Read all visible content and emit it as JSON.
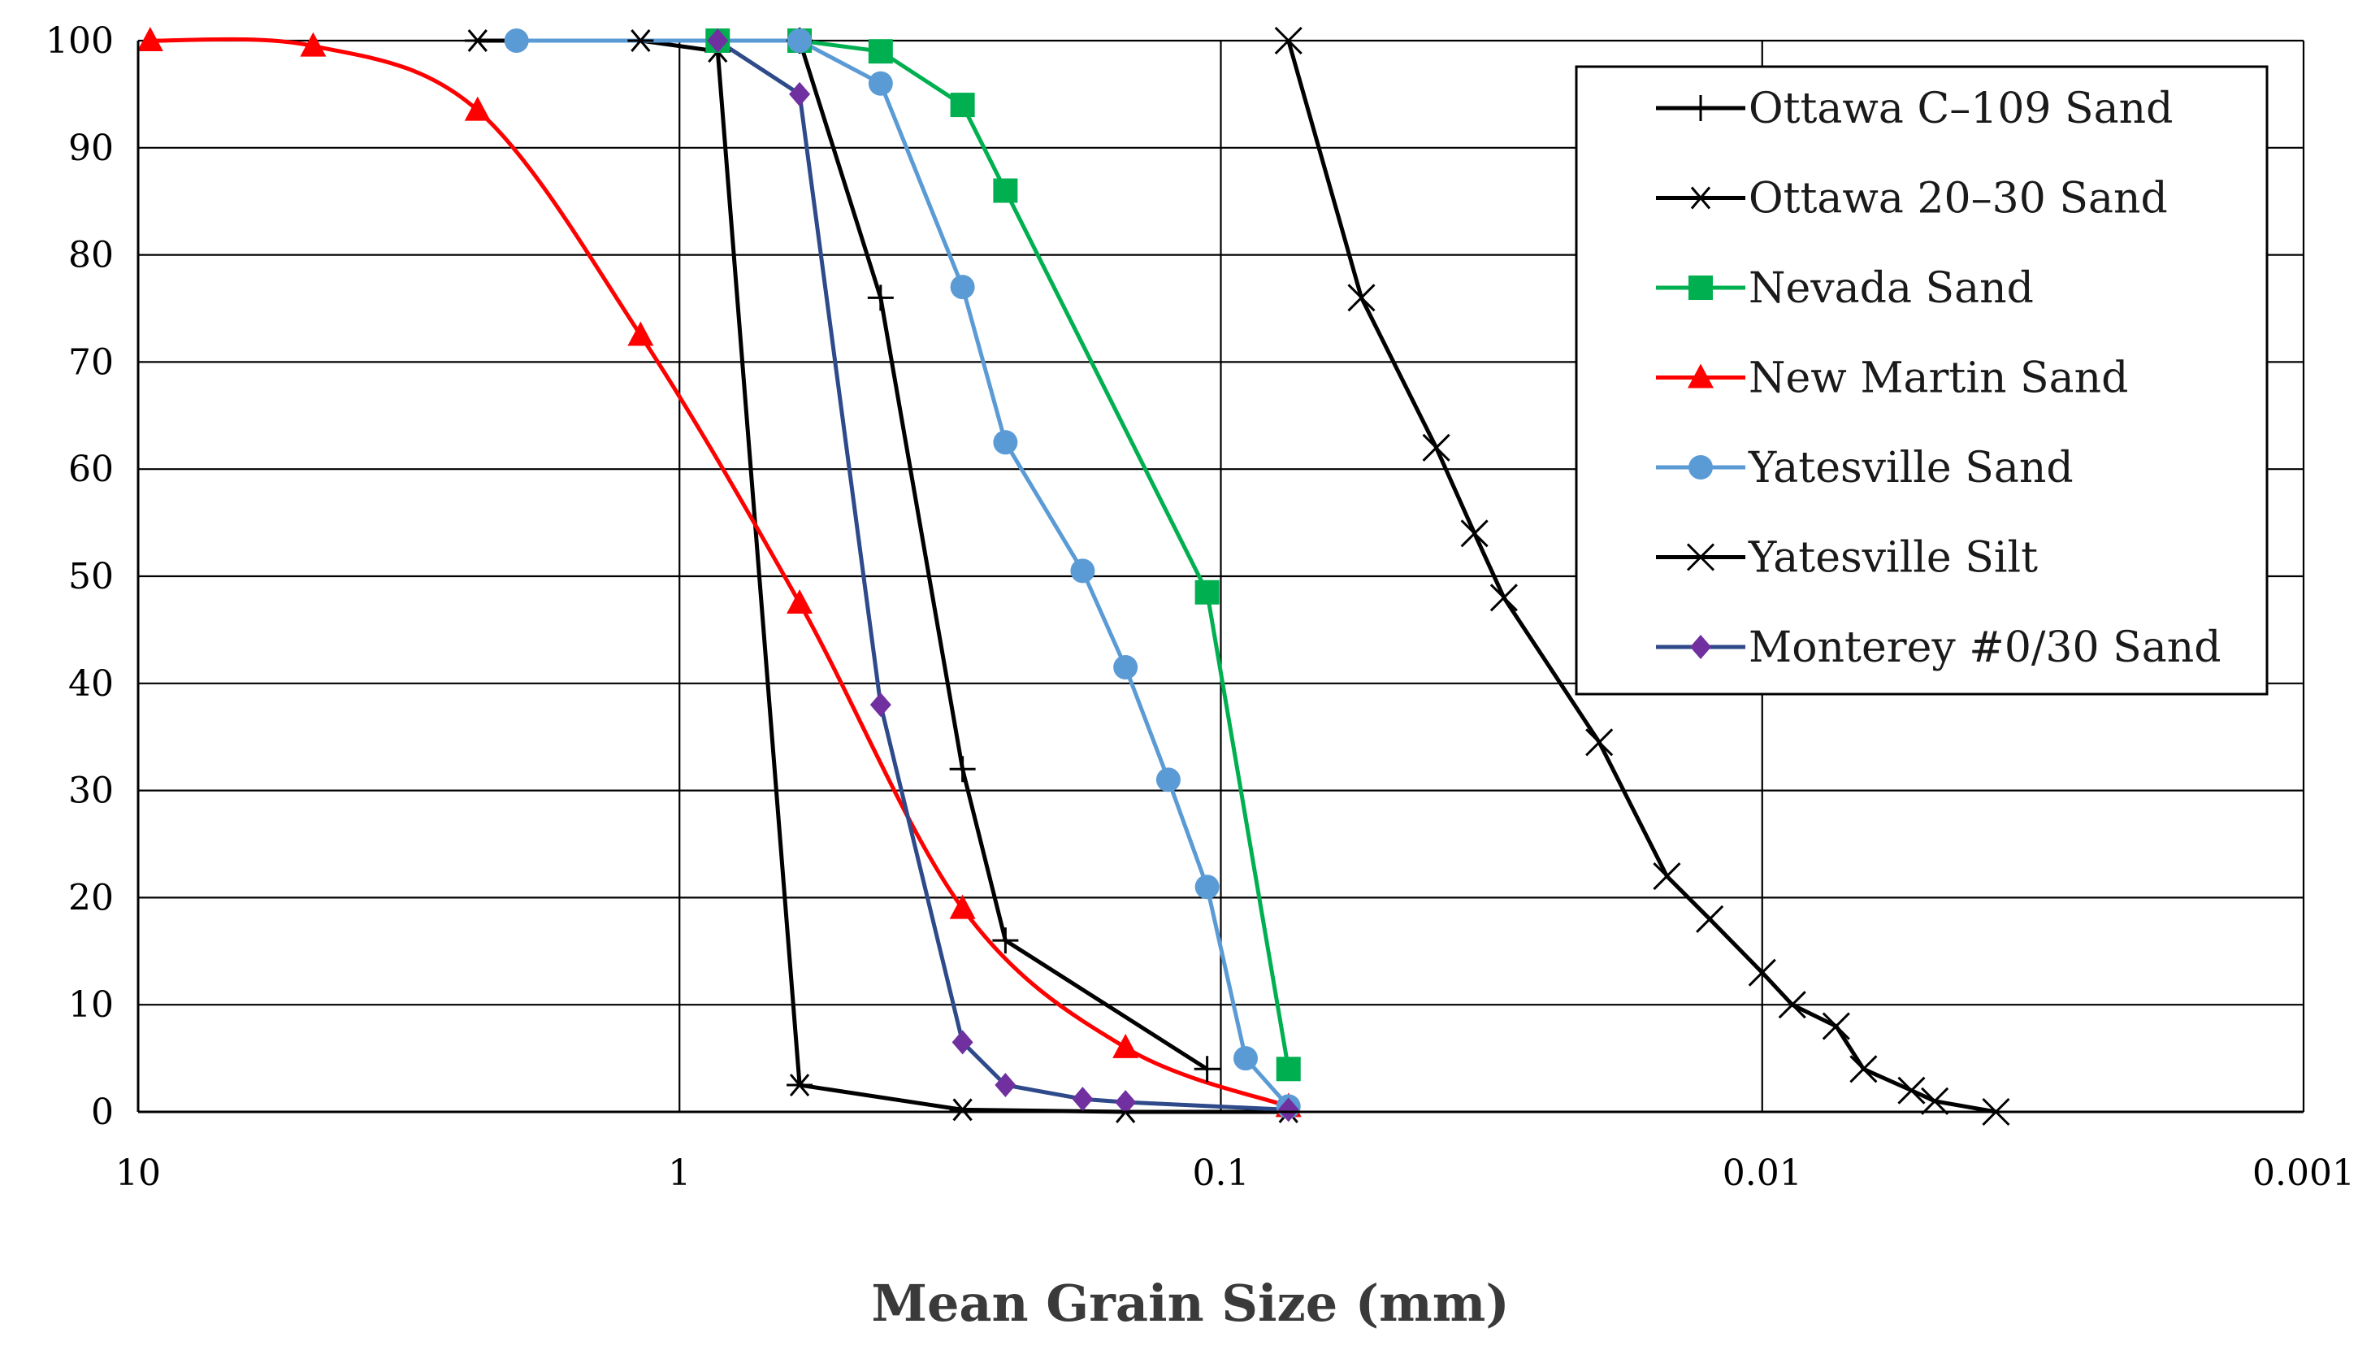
{
  "chart_data": {
    "type": "line",
    "title": "",
    "xlabel": "Mean Grain Size (mm)",
    "ylabel": "",
    "x_scale": "log",
    "x_reversed": true,
    "xlim": [
      10,
      0.001
    ],
    "ylim": [
      0,
      100
    ],
    "grid": true,
    "legend_position": "top-right",
    "x_ticks": [
      10,
      1,
      0.1,
      0.01,
      0.001
    ],
    "x_tick_labels": [
      "10",
      "1",
      "0.1",
      "0.01",
      "0.001"
    ],
    "y_ticks": [
      0,
      10,
      20,
      30,
      40,
      50,
      60,
      70,
      80,
      90,
      100
    ],
    "y_tick_labels": [
      "0",
      "10",
      "20",
      "30",
      "40",
      "50",
      "60",
      "70",
      "80",
      "90",
      "100"
    ],
    "series": [
      {
        "name": "Ottawa C–109 Sand",
        "color": "#000000",
        "marker": "plus",
        "curve": "linear",
        "x": [
          0.6,
          0.425,
          0.3,
          0.25,
          0.106
        ],
        "y": [
          100,
          76,
          32,
          16,
          4
        ]
      },
      {
        "name": "Ottawa 20–30 Sand",
        "color": "#000000",
        "marker": "star",
        "curve": "linear",
        "x": [
          2.36,
          1.18,
          0.85,
          0.6,
          0.3,
          0.15,
          0.075
        ],
        "y": [
          100,
          100,
          99,
          2.5,
          0.2,
          0,
          0
        ]
      },
      {
        "name": "Nevada Sand",
        "color": "#00b050",
        "marker": "square",
        "curve": "linear",
        "x": [
          0.85,
          0.6,
          0.425,
          0.3,
          0.25,
          0.106,
          0.075
        ],
        "y": [
          100,
          100,
          99,
          94,
          86,
          48.5,
          4
        ]
      },
      {
        "name": "New Martin Sand",
        "color": "#ff0000",
        "marker": "triangle",
        "curve": "smooth",
        "x": [
          9.5,
          4.75,
          2.36,
          1.18,
          0.6,
          0.3,
          0.15,
          0.075
        ],
        "y": [
          100,
          99.5,
          93.5,
          72.5,
          47.5,
          19,
          6,
          0.5
        ]
      },
      {
        "name": "Yatesville Sand",
        "color": "#5b9bd5",
        "marker": "circle",
        "curve": "linear",
        "x": [
          2.0,
          0.6,
          0.425,
          0.3,
          0.25,
          0.18,
          0.15,
          0.125,
          0.106,
          0.09,
          0.075
        ],
        "y": [
          100,
          100,
          96,
          77,
          62.5,
          50.5,
          41.5,
          31,
          21,
          5,
          0.5
        ]
      },
      {
        "name": "Yatesville Silt",
        "color": "#000000",
        "marker": "x",
        "curve": "linear",
        "x": [
          0.075,
          0.055,
          0.04,
          0.034,
          0.03,
          0.02,
          0.015,
          0.0125,
          0.01,
          0.0088,
          0.0073,
          0.0065,
          0.0053,
          0.0048,
          0.0037
        ],
        "y": [
          100,
          76,
          62,
          54,
          48,
          34.5,
          22,
          18,
          13,
          10,
          8,
          4,
          2,
          1,
          0
        ]
      },
      {
        "name": "Monterey #0/30 Sand",
        "color": "#2e4a8a",
        "marker": "diamond",
        "marker_color": "#7030a0",
        "curve": "linear",
        "x": [
          0.85,
          0.6,
          0.425,
          0.3,
          0.25,
          0.18,
          0.15,
          0.075
        ],
        "y": [
          100,
          95,
          38,
          6.5,
          2.5,
          1.2,
          0.9,
          0.2
        ]
      }
    ]
  }
}
